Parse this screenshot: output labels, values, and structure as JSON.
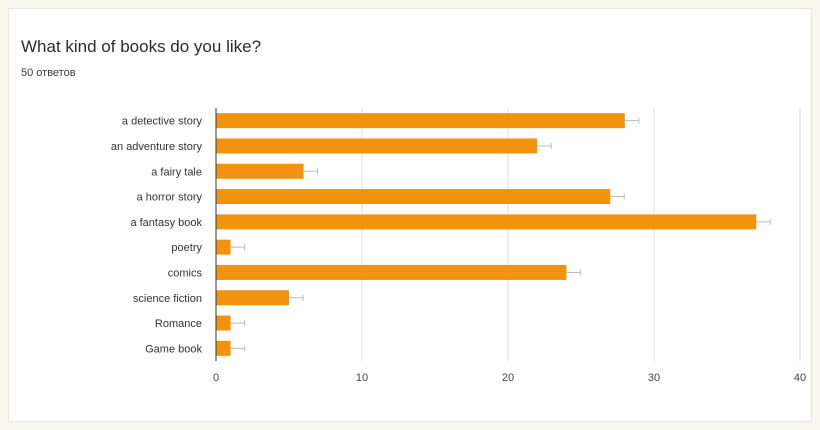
{
  "question": {
    "title": "What kind of books do you like?",
    "responses": "50 ответов"
  },
  "colors": {
    "bar": "#f2930f",
    "grid": "#dddddd",
    "axis": "#333333"
  },
  "chart_data": {
    "type": "bar",
    "orientation": "horizontal",
    "title": "What kind of books do you like?",
    "subtitle": "50 ответов",
    "categories": [
      "a detective story",
      "an adventure story",
      "a fairy tale",
      "a horror story",
      "a fantasy book",
      "poetry",
      "comics",
      "science fiction",
      "Romance",
      "Game book"
    ],
    "values": [
      28,
      22,
      6,
      27,
      37,
      1,
      24,
      5,
      1,
      1
    ],
    "xlim": [
      0,
      40
    ],
    "xticks": [
      0,
      10,
      20,
      30,
      40
    ],
    "grid": true,
    "legend": "none"
  }
}
